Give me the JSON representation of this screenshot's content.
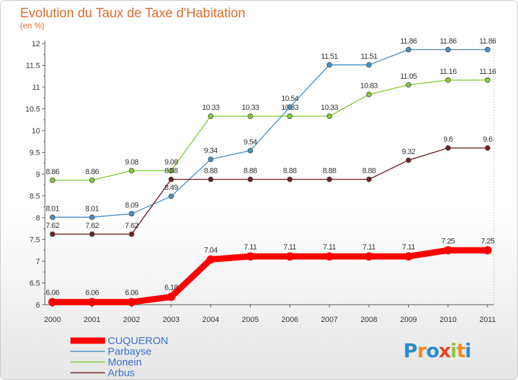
{
  "chart_data": {
    "type": "line",
    "title": "Evolution du Taux de Taxe d'Habitation",
    "subtitle": "(en %)",
    "x": [
      "2000",
      "2001",
      "2002",
      "2003",
      "2004",
      "2005",
      "2006",
      "2007",
      "2008",
      "2009",
      "2010",
      "2011"
    ],
    "ylim": [
      6,
      12
    ],
    "yticks": [
      "6",
      "6.5",
      "7",
      "7.5",
      "8",
      "8.5",
      "9",
      "9.5",
      "10",
      "10.5",
      "11",
      "11.5",
      "12"
    ],
    "grid": false,
    "legend_position": "bottom-left",
    "series": [
      {
        "name": "Monein",
        "color": "#86cc3a",
        "values": [
          8.86,
          8.86,
          9.08,
          9.08,
          10.33,
          10.33,
          10.33,
          10.33,
          10.83,
          11.05,
          11.16,
          11.16
        ],
        "labels": [
          "8.86",
          "8.86",
          "9.08",
          "9.08",
          "10.33",
          "10.33",
          "10.33",
          "10.33",
          "10.83",
          "11.05",
          "11.16",
          "11.16"
        ]
      },
      {
        "name": "Parbayse",
        "color": "#4a90c8",
        "values": [
          8.01,
          8.01,
          8.09,
          8.49,
          9.34,
          9.54,
          10.54,
          11.51,
          11.51,
          11.86,
          11.86,
          11.86
        ],
        "labels": [
          "8.01",
          "8.01",
          "8.09",
          "8.49",
          "9.34",
          "9.54",
          "10.54",
          "11.51",
          "11.51",
          "11.86",
          "11.86",
          "11.86"
        ]
      },
      {
        "name": "Arbus",
        "color": "#6b2424",
        "values": [
          7.62,
          7.62,
          7.62,
          8.88,
          8.88,
          8.88,
          8.88,
          8.88,
          8.88,
          9.32,
          9.6,
          9.6
        ],
        "labels": [
          "7.62",
          "7.62",
          "7.62",
          "8.88",
          "8.88",
          "8.88",
          "8.88",
          "8.88",
          "8.88",
          "9.32",
          "9.6",
          "9.6"
        ]
      },
      {
        "name": "CUQUERON",
        "color": "#ff0000",
        "values": [
          6.06,
          6.06,
          6.06,
          6.18,
          7.04,
          7.11,
          7.11,
          7.11,
          7.11,
          7.11,
          7.25,
          7.25
        ],
        "labels": [
          "6.06",
          "6.06",
          "6.06",
          "6.18",
          "7.04",
          "7.11",
          "7.11",
          "7.11",
          "7.11",
          "7.11",
          "7.25",
          "7.25"
        ]
      }
    ],
    "legend": [
      {
        "name": "CUQUERON",
        "color": "#ff0000",
        "thick": true
      },
      {
        "name": "Parbayse",
        "color": "#4a90c8",
        "thick": false
      },
      {
        "name": "Monein",
        "color": "#86cc3a",
        "thick": false
      },
      {
        "name": "Arbus",
        "color": "#6b2424",
        "thick": false
      }
    ]
  },
  "logo": {
    "letters": [
      "P",
      "r",
      "o",
      "x",
      "i",
      "t",
      "i"
    ],
    "colors": [
      "#2e8ccf",
      "#f28c1e",
      "#2e8ccf",
      "#e8452a",
      "#8cc63f",
      "#f28c1e",
      "#2e8ccf"
    ]
  }
}
